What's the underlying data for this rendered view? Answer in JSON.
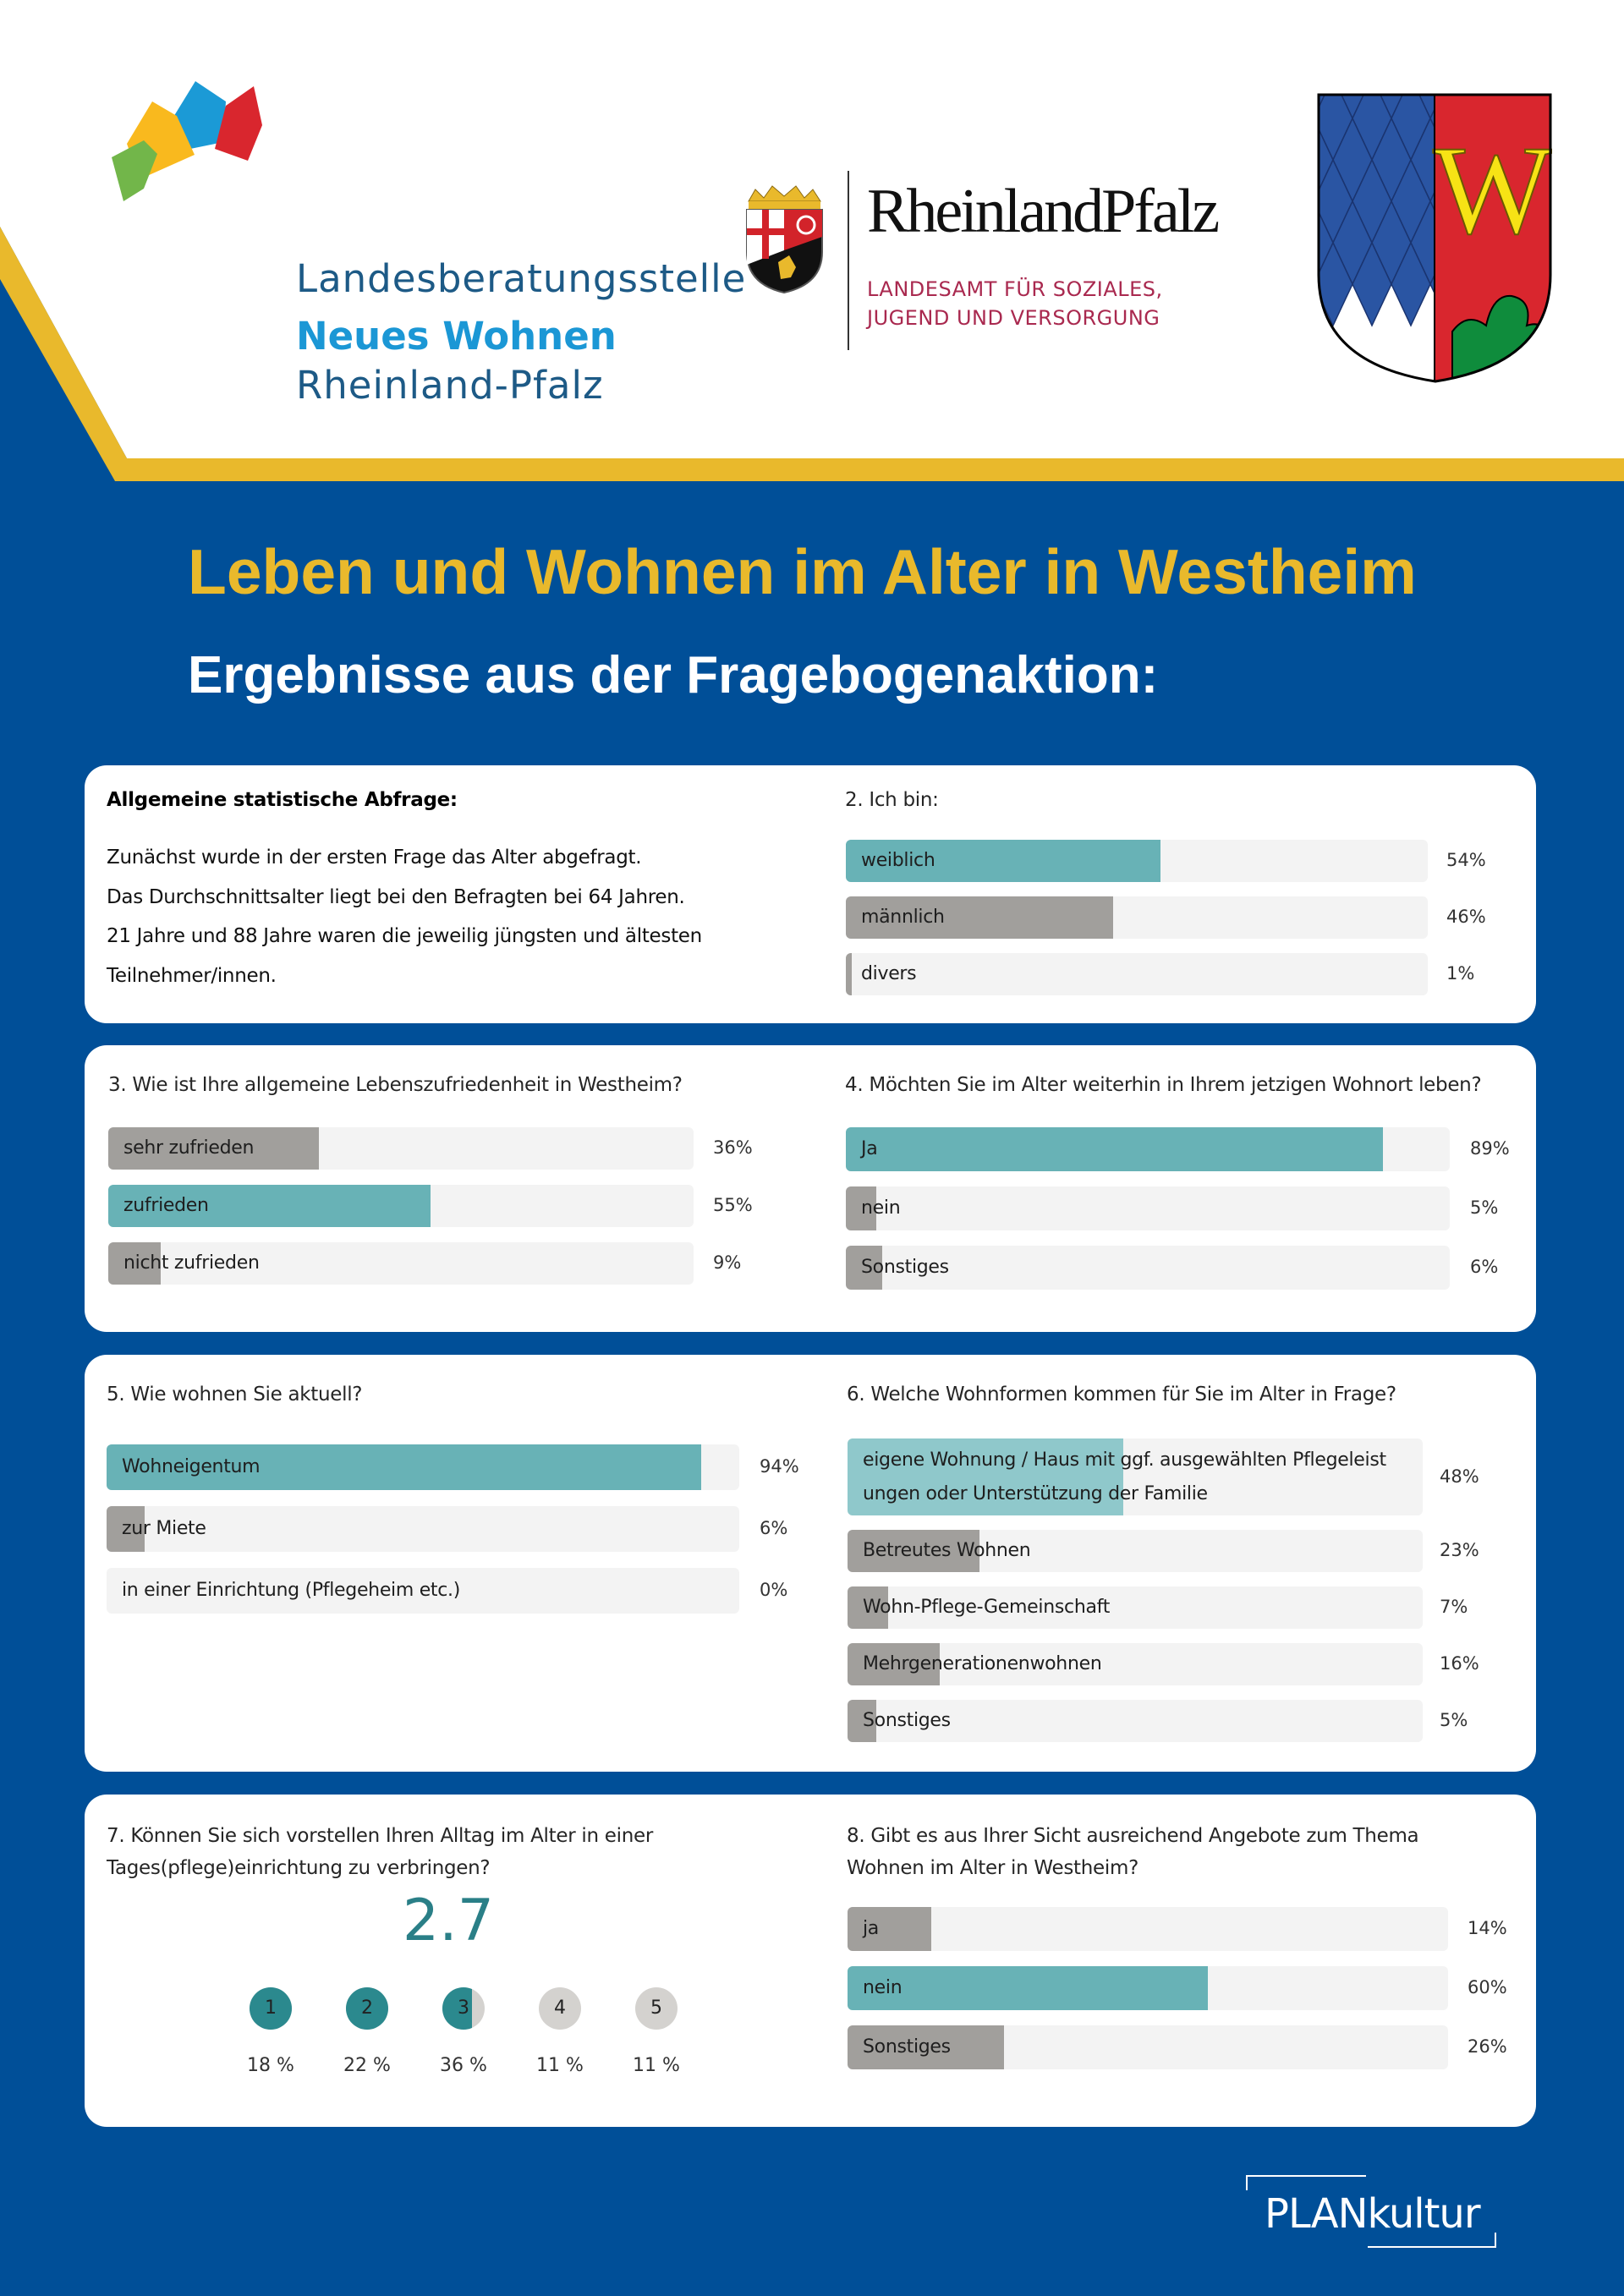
{
  "colors": {
    "background_blue": "#004f98",
    "accent_yellow": "#e9b92c",
    "teal_bar": "#68b2b6",
    "teal_bar_light": "#8fc8cb",
    "grey_bar": "#a19f9c",
    "bar_track": "#f3f3f3",
    "rating_teal": "#2b898e",
    "rating_grey": "#d4d2cf"
  },
  "header": {
    "logo_landesberatung": {
      "line1": "Landesberatungsstelle",
      "line2": "Neues Wohnen",
      "line3": "Rheinland-Pfalz"
    },
    "logo_rlp": {
      "name": "RheinlandPfalz",
      "sub_line1": "LANDESAMT FÜR SOZIALES,",
      "sub_line2": "JUGEND UND VERSORGUNG"
    },
    "crest_westheim_letter": "W"
  },
  "title": "Leben und Wohnen im Alter in Westheim",
  "subtitle": "Ergebnisse aus der Fragebogenaktion:",
  "intro": {
    "heading": "Allgemeine statistische Abfrage:",
    "lines": [
      "Zunächst wurde in der ersten Frage das Alter abgefragt.",
      "Das Durchschnittsalter liegt bei den Befragten bei 64 Jahren.",
      "21 Jahre und 88 Jahre waren die jeweilig jüngsten und ältesten",
      "Teilnehmer/innen."
    ]
  },
  "chart_data": [
    {
      "id": "q2",
      "type": "bar",
      "title": "2. Ich bin:",
      "categories": [
        "weiblich",
        "männlich",
        "divers"
      ],
      "values": [
        54,
        46,
        1
      ],
      "value_labels": [
        "54%",
        "46%",
        "1%"
      ],
      "highlight": [
        true,
        false,
        false
      ],
      "unit": "%",
      "xlim": [
        0,
        100
      ]
    },
    {
      "id": "q3",
      "type": "bar",
      "title": "3. Wie ist Ihre allgemeine Lebenszufriedenheit in Westheim?",
      "categories": [
        "sehr zufrieden",
        "zufrieden",
        "nicht zufrieden"
      ],
      "values": [
        36,
        55,
        9
      ],
      "value_labels": [
        "36%",
        "55%",
        "9%"
      ],
      "highlight": [
        false,
        true,
        false
      ],
      "unit": "%",
      "xlim": [
        0,
        100
      ]
    },
    {
      "id": "q4",
      "type": "bar",
      "title": "4. Möchten Sie im Alter weiterhin in Ihrem jetzigen Wohnort leben?",
      "categories": [
        "Ja",
        "nein",
        "Sonstiges"
      ],
      "values": [
        89,
        5,
        6
      ],
      "value_labels": [
        "89%",
        "5%",
        "6%"
      ],
      "highlight": [
        true,
        false,
        false
      ],
      "unit": "%",
      "xlim": [
        0,
        100
      ]
    },
    {
      "id": "q5",
      "type": "bar",
      "title": "5. Wie wohnen Sie aktuell?",
      "categories": [
        "Wohneigentum",
        "zur Miete",
        "in einer Einrichtung (Pflegeheim etc.)"
      ],
      "values": [
        94,
        6,
        0
      ],
      "value_labels": [
        "94%",
        "6%",
        "0%"
      ],
      "highlight": [
        true,
        false,
        false
      ],
      "unit": "%",
      "xlim": [
        0,
        100
      ]
    },
    {
      "id": "q6",
      "type": "bar",
      "title": "6. Welche Wohnformen kommen für Sie im Alter in Frage?",
      "categories": [
        "eigene Wohnung / Haus mit ggf. ausgewählten Pflegeleistungen oder Unterstützung der Familie",
        "Betreutes Wohnen",
        "Wohn-Pflege-Gemeinschaft",
        "Mehrgenerationenwohnen",
        "Sonstiges"
      ],
      "label_lines": [
        [
          "eigene Wohnung / Haus mit ggf. ausgewählten Pflegeleist",
          "ungen oder Unterstützung der Familie"
        ],
        [
          "Betreutes Wohnen"
        ],
        [
          "Wohn-Pflege-Gemeinschaft"
        ],
        [
          "Mehrgenerationenwohnen"
        ],
        [
          "Sonstiges"
        ]
      ],
      "values": [
        48,
        23,
        7,
        16,
        5
      ],
      "value_labels": [
        "48%",
        "23%",
        "7%",
        "16%",
        "5%"
      ],
      "highlight": [
        true,
        false,
        false,
        false,
        false
      ],
      "unit": "%",
      "xlim": [
        0,
        100
      ]
    },
    {
      "id": "q7",
      "type": "bar",
      "title": "7. Können Sie sich vorstellen Ihren Alltag im Alter in einer Tages(pflege)einrichtung zu verbringen?",
      "title_lines": [
        "7. Können Sie sich vorstellen Ihren Alltag im Alter in einer",
        "Tages(pflege)einrichtung zu verbringen?"
      ],
      "average": 2.7,
      "average_label": "2.7",
      "scale": [
        1,
        5
      ],
      "categories": [
        "1",
        "2",
        "3",
        "4",
        "5"
      ],
      "values": [
        18,
        22,
        36,
        11,
        11
      ],
      "value_labels": [
        "18 %",
        "22 %",
        "36 %",
        "11 %",
        "11 %"
      ],
      "unit": "%"
    },
    {
      "id": "q8",
      "type": "bar",
      "title": "8. Gibt es aus Ihrer Sicht ausreichend Angebote zum Thema Wohnen im Alter in Westheim?",
      "title_lines": [
        "8. Gibt es aus Ihrer Sicht ausreichend Angebote zum Thema",
        "Wohnen im Alter in Westheim?"
      ],
      "categories": [
        "ja",
        "nein",
        "Sonstiges"
      ],
      "values": [
        14,
        60,
        26
      ],
      "value_labels": [
        "14%",
        "60%",
        "26%"
      ],
      "highlight": [
        false,
        true,
        false
      ],
      "unit": "%",
      "xlim": [
        0,
        100
      ]
    }
  ],
  "footer": {
    "brand": "PLANkultur"
  }
}
